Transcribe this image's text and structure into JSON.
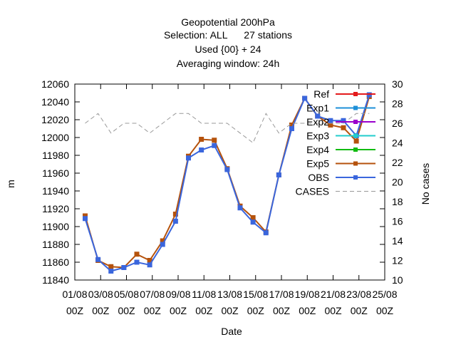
{
  "chart_data": {
    "type": "line",
    "title_lines": [
      "Geopotential 200hPa",
      "Selection: ALL      27 stations",
      "Used {00} + 24",
      "Averaging window: 24h"
    ],
    "xlabel": "Date",
    "ylabel": "m",
    "y2label": "No cases",
    "x_ticks": [
      {
        "day": 1,
        "l1": "01/08",
        "l2": "00Z"
      },
      {
        "day": 3,
        "l1": "03/08",
        "l2": "00Z"
      },
      {
        "day": 5,
        "l1": "05/08",
        "l2": "00Z"
      },
      {
        "day": 7,
        "l1": "07/08",
        "l2": "00Z"
      },
      {
        "day": 9,
        "l1": "09/08",
        "l2": "00Z"
      },
      {
        "day": 11,
        "l1": "11/08",
        "l2": "00Z"
      },
      {
        "day": 13,
        "l1": "13/08",
        "l2": "00Z"
      },
      {
        "day": 15,
        "l1": "15/08",
        "l2": "00Z"
      },
      {
        "day": 17,
        "l1": "17/08",
        "l2": "00Z"
      },
      {
        "day": 19,
        "l1": "19/08",
        "l2": "00Z"
      },
      {
        "day": 21,
        "l1": "21/08",
        "l2": "00Z"
      },
      {
        "day": 23,
        "l1": "23/08",
        "l2": "00Z"
      },
      {
        "day": 25,
        "l1": "25/08",
        "l2": "00Z"
      }
    ],
    "xlim": [
      1,
      25
    ],
    "ylim": [
      11840,
      12060
    ],
    "y_ticks": [
      11840,
      11860,
      11880,
      11900,
      11920,
      11940,
      11960,
      11980,
      12000,
      12020,
      12040,
      12060
    ],
    "y2lim": [
      10,
      30
    ],
    "y2_ticks": [
      10,
      12,
      14,
      16,
      18,
      20,
      22,
      24,
      26,
      28,
      30
    ],
    "legend_position": "top-right, inside",
    "x": [
      1.8,
      2.8,
      3.8,
      4.8,
      5.8,
      6.8,
      7.8,
      8.8,
      9.8,
      10.8,
      11.8,
      12.8,
      13.8,
      14.8,
      15.8,
      16.8,
      17.8,
      18.8,
      19.8,
      20.8,
      21.8,
      22.8,
      23.8
    ],
    "series": [
      {
        "name": "Ref",
        "color": "#e41a1c",
        "marker": "square",
        "hidden": true,
        "values": [
          11912,
          11862,
          11855,
          11854,
          11869,
          11862,
          11884,
          11914,
          11979,
          11998,
          11997,
          11965,
          11923,
          11910,
          11894,
          11958,
          12014,
          12044,
          12024,
          12014,
          12011,
          11996,
          12046
        ]
      },
      {
        "name": "Exp1",
        "color": "#1e90d8",
        "marker": "square",
        "hidden": true,
        "values": [
          11912,
          11862,
          11855,
          11854,
          11869,
          11862,
          11884,
          11914,
          11979,
          11998,
          11997,
          11965,
          11923,
          11910,
          11894,
          11958,
          12014,
          12044,
          12024,
          12014,
          12011,
          11996,
          12046
        ]
      },
      {
        "name": "Exp2",
        "color": "#9a00cc",
        "marker": "square",
        "hidden": true,
        "values": [
          11912,
          11862,
          11855,
          11854,
          11869,
          11862,
          11884,
          11914,
          11979,
          11998,
          11997,
          11965,
          11923,
          11910,
          11894,
          11958,
          12014,
          12044,
          12024,
          12014,
          12011,
          11996,
          12046
        ]
      },
      {
        "name": "Exp3",
        "color": "#22cccc",
        "marker": "square",
        "hidden": true,
        "values": [
          11912,
          11862,
          11855,
          11854,
          11869,
          11862,
          11884,
          11914,
          11979,
          11998,
          11997,
          11965,
          11923,
          11910,
          11894,
          11958,
          12014,
          12044,
          12024,
          12014,
          12011,
          11996,
          12046
        ]
      },
      {
        "name": "Exp4",
        "color": "#11bb11",
        "marker": "square",
        "hidden": true,
        "values": [
          11912,
          11862,
          11855,
          11854,
          11869,
          11862,
          11884,
          11914,
          11979,
          11998,
          11997,
          11965,
          11923,
          11910,
          11894,
          11958,
          12014,
          12044,
          12024,
          12014,
          12011,
          11996,
          12046
        ]
      },
      {
        "name": "Exp5",
        "color": "#b5520c",
        "marker": "square",
        "values": [
          11912,
          11862,
          11855,
          11854,
          11869,
          11862,
          11884,
          11914,
          11979,
          11998,
          11997,
          11965,
          11923,
          11910,
          11894,
          11958,
          12014,
          12044,
          12024,
          12014,
          12011,
          11996,
          12046
        ]
      },
      {
        "name": "OBS",
        "color": "#3a66dd",
        "marker": "square",
        "values": [
          11909,
          11863,
          11850,
          11854,
          11860,
          11857,
          11880,
          11906,
          11977,
          11986,
          11991,
          11964,
          11921,
          11905,
          11893,
          11958,
          12010,
          12044,
          12024,
          12019,
          12019,
          12002,
          12048
        ]
      },
      {
        "name": "CASES",
        "color": "#999999",
        "dash": true,
        "axis": "y2",
        "x": [
          1.8,
          2.3,
          2.8,
          3.3,
          3.8,
          4.3,
          4.8,
          5.3,
          5.8,
          6.3,
          6.8,
          7.3,
          7.8,
          8.3,
          8.8,
          9.3,
          9.8,
          10.3,
          10.8,
          11.3,
          11.8,
          12.3,
          12.8,
          13.3,
          13.8,
          14.3,
          14.8,
          15.3,
          15.8,
          16.3,
          16.8,
          17.3,
          17.8,
          18.3,
          18.8,
          19.3,
          19.8,
          20.3,
          20.8,
          21.3,
          21.8,
          22.3,
          22.8,
          23.3,
          23.8
        ],
        "values": [
          26,
          26.5,
          27,
          26,
          25,
          25.5,
          26,
          26,
          26,
          25.5,
          25,
          25.5,
          26,
          26.5,
          27,
          27,
          27,
          26.5,
          26,
          26,
          26,
          26,
          26,
          25.5,
          25,
          24.5,
          24,
          25.5,
          27,
          26,
          25,
          25.5,
          26,
          26,
          26,
          26,
          26,
          26,
          26,
          26,
          26,
          26.5,
          27,
          27,
          27
        ]
      }
    ]
  }
}
